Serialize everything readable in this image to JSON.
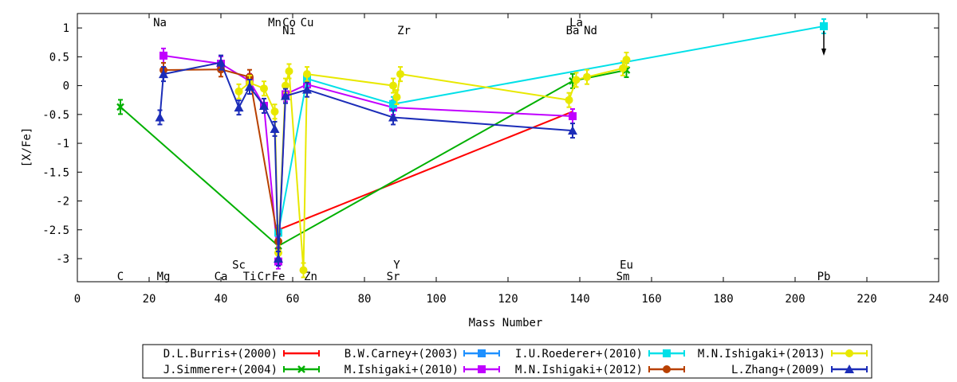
{
  "chart_data": {
    "type": "line",
    "title": "",
    "xlabel": "Mass Number",
    "ylabel": "[X/Fe]",
    "xlim": [
      0,
      240
    ],
    "ylim": [
      -3.4,
      1.25
    ],
    "xticks": [
      0,
      20,
      40,
      60,
      80,
      100,
      120,
      140,
      160,
      180,
      200,
      220,
      240
    ],
    "yticks": [
      1,
      0.5,
      0,
      -0.5,
      -1,
      -1.5,
      -2,
      -2.5,
      -3
    ],
    "grid": false,
    "legend_position": "bottom",
    "element_labels": [
      {
        "text": "Na",
        "x": 23,
        "y": 1.1
      },
      {
        "text": "Mn",
        "x": 55,
        "y": 1.1
      },
      {
        "text": "Co",
        "x": 59,
        "y": 1.1
      },
      {
        "text": "Cu",
        "x": 64,
        "y": 1.1
      },
      {
        "text": "Ni",
        "x": 59,
        "y": 0.96
      },
      {
        "text": "Zr",
        "x": 91,
        "y": 0.96
      },
      {
        "text": "La",
        "x": 139,
        "y": 1.1
      },
      {
        "text": "Ba",
        "x": 138,
        "y": 0.96
      },
      {
        "text": "Nd",
        "x": 143,
        "y": 0.96
      },
      {
        "text": "Sc",
        "x": 45,
        "y": -3.1
      },
      {
        "text": "Y",
        "x": 89,
        "y": -3.1
      },
      {
        "text": "Eu",
        "x": 153,
        "y": -3.1
      },
      {
        "text": "C",
        "x": 12,
        "y": -3.3
      },
      {
        "text": "Mg",
        "x": 24,
        "y": -3.3
      },
      {
        "text": "Ca",
        "x": 40,
        "y": -3.3
      },
      {
        "text": "Ti",
        "x": 48,
        "y": -3.3
      },
      {
        "text": "Cr",
        "x": 52,
        "y": -3.3
      },
      {
        "text": "Fe",
        "x": 56,
        "y": -3.3
      },
      {
        "text": "Zn",
        "x": 65,
        "y": -3.3
      },
      {
        "text": "Sr",
        "x": 88,
        "y": -3.3
      },
      {
        "text": "Sm",
        "x": 152,
        "y": -3.3
      },
      {
        "text": "Pb",
        "x": 208,
        "y": -3.3
      }
    ],
    "series": [
      {
        "name": "D.L.Burris+(2000)",
        "color": "#ff0000",
        "marker": "none",
        "points": [
          [
            56,
            -2.5
          ],
          [
            138,
            -0.45
          ]
        ]
      },
      {
        "name": "J.Simmerer+(2004)",
        "color": "#00b000",
        "marker": "x",
        "points": [
          [
            12,
            -0.37
          ],
          [
            56,
            -2.78
          ],
          [
            138,
            0.08
          ],
          [
            153,
            0.27
          ]
        ]
      },
      {
        "name": "B.W.Carney+(2003)",
        "color": "#1e90ff",
        "marker": "square",
        "points": []
      },
      {
        "name": "M.Ishigaki+(2010)",
        "color": "#c000ff",
        "marker": "square",
        "points": [
          [
            24,
            0.52
          ],
          [
            40,
            0.38
          ],
          [
            48,
            0.08
          ],
          [
            52,
            -0.35
          ],
          [
            56,
            -3.05
          ],
          [
            58,
            -0.15
          ],
          [
            64,
            0.02
          ],
          [
            88,
            -0.38
          ],
          [
            138,
            -0.53
          ]
        ]
      },
      {
        "name": "I.U.Roederer+(2010)",
        "color": "#00e0e8",
        "marker": "square",
        "points": [
          [
            56,
            -2.55
          ],
          [
            64,
            0.12
          ],
          [
            88,
            -0.32
          ],
          [
            208,
            1.03
          ]
        ],
        "upper_limit_x": 208
      },
      {
        "name": "M.N.Ishigaki+(2012)",
        "color": "#b84000",
        "marker": "circle",
        "points": [
          [
            24,
            0.27
          ],
          [
            40,
            0.28
          ],
          [
            48,
            0.15
          ],
          [
            56,
            -2.7
          ]
        ]
      },
      {
        "name": "M.N.Ishigaki+(2013)",
        "color": "#e8e800",
        "marker": "circle",
        "points": [
          [
            45,
            -0.1
          ],
          [
            48,
            0.05
          ],
          [
            52,
            -0.05
          ],
          [
            55,
            -0.45
          ],
          [
            56,
            -2.9
          ],
          [
            58,
            0.0
          ],
          [
            59,
            0.25
          ],
          [
            63,
            -3.2
          ],
          [
            64,
            0.2
          ],
          [
            88,
            0.0
          ],
          [
            89,
            -0.2
          ],
          [
            90,
            0.2
          ],
          [
            137,
            -0.25
          ],
          [
            139,
            0.1
          ],
          [
            142,
            0.15
          ],
          [
            152,
            0.3
          ],
          [
            153,
            0.45
          ]
        ]
      },
      {
        "name": "L.Zhang+(2009)",
        "color": "#1c2db8",
        "marker": "triangle",
        "points": [
          [
            23,
            -0.55
          ],
          [
            24,
            0.2
          ],
          [
            40,
            0.4
          ],
          [
            45,
            -0.38
          ],
          [
            48,
            -0.02
          ],
          [
            52,
            -0.35
          ],
          [
            55,
            -0.75
          ],
          [
            56,
            -3.0
          ],
          [
            58,
            -0.18
          ],
          [
            64,
            -0.07
          ],
          [
            88,
            -0.55
          ],
          [
            138,
            -0.78
          ]
        ]
      }
    ]
  }
}
